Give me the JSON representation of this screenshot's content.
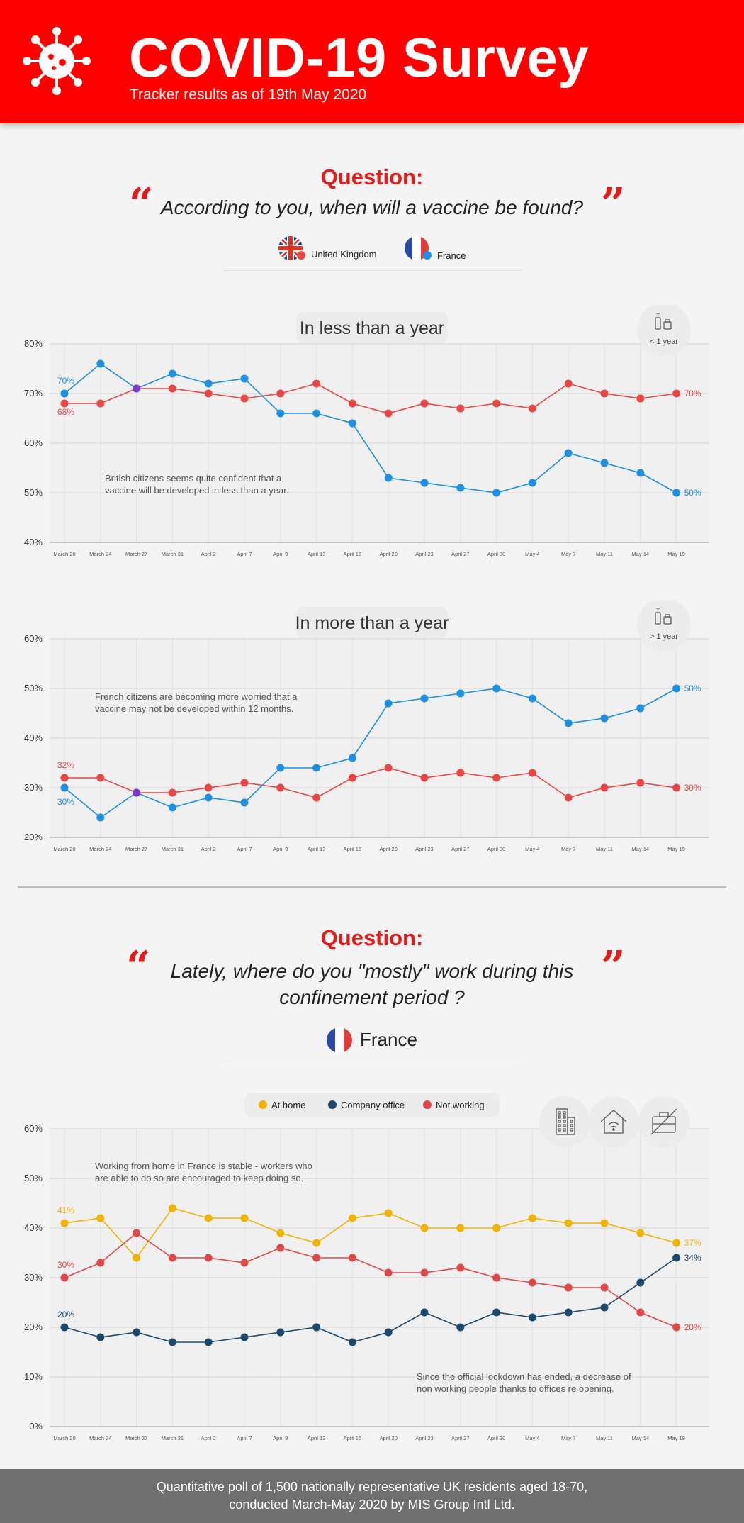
{
  "header": {
    "title": "COVID-19 Survey",
    "subtitle": "Tracker results as of 19th May 2020",
    "icon": "virus-icon",
    "bg_color": "#ff0000"
  },
  "section1": {
    "question_label": "Question:",
    "question_text": "According to you, when will a vaccine be found?",
    "legend": [
      {
        "label": "United Kingdom",
        "icon": "uk-flag-icon",
        "color": "#e84545"
      },
      {
        "label": "France",
        "icon": "france-flag-icon",
        "color": "#1e8fe1"
      }
    ]
  },
  "section2": {
    "question_label": "Question:",
    "question_text_line1": "Lately, where do you \"mostly\" work during this",
    "question_text_line2": "confinement period ?",
    "country": "France",
    "icons": [
      "office-building-icon",
      "home-wifi-icon",
      "no-work-briefcase-icon"
    ]
  },
  "footer": {
    "line1": "Quantitative poll of 1,500 nationally representative UK residents aged 18-70,",
    "line2": "conducted March-May 2020 by MIS Group Intl Ltd."
  },
  "chart_data": [
    {
      "type": "line",
      "title": "In less than a year",
      "badge": "< 1 year",
      "badge_icon": "vaccine-icon",
      "annotation": [
        "British citizens seems quite confident that a",
        "vaccine will be developed in less than a year."
      ],
      "categories": [
        "March 20",
        "March 24",
        "March 27",
        "March 31",
        "April 2",
        "April 7",
        "April 9",
        "April 13",
        "April 16",
        "April 20",
        "April 23",
        "April 27",
        "April 30",
        "May 4",
        "May 7",
        "May 11",
        "May 14",
        "May 19"
      ],
      "ylim": [
        40,
        80
      ],
      "yticks": [
        "40%",
        "50%",
        "60%",
        "70%",
        "80%"
      ],
      "grid": true,
      "series": [
        {
          "name": "United Kingdom",
          "color": "#e84545",
          "values": [
            68,
            68,
            71,
            71,
            70,
            69,
            70,
            72,
            68,
            66,
            68,
            67,
            68,
            67,
            72,
            70,
            69,
            70
          ],
          "first_label": "68%",
          "last_label": "70%"
        },
        {
          "name": "France",
          "color": "#1e8fe1",
          "values": [
            70,
            76,
            71,
            74,
            72,
            73,
            66,
            66,
            64,
            53,
            52,
            51,
            50,
            52,
            58,
            56,
            54,
            50
          ],
          "first_label": "70%",
          "last_label": "50%"
        }
      ]
    },
    {
      "type": "line",
      "title": "In more than a year",
      "badge": "> 1 year",
      "badge_icon": "vaccine-icon",
      "annotation": [
        "French citizens are becoming more worried that a",
        "vaccine may not be developed within 12 months."
      ],
      "categories": [
        "March 20",
        "March 24",
        "March 27",
        "March 31",
        "April 2",
        "April 7",
        "April 9",
        "April 13",
        "April 16",
        "April 20",
        "April 23",
        "April 27",
        "April 30",
        "May 4",
        "May 7",
        "May 11",
        "May 14",
        "May 19"
      ],
      "ylim": [
        20,
        60
      ],
      "yticks": [
        "20%",
        "30%",
        "40%",
        "50%",
        "60%"
      ],
      "grid": true,
      "series": [
        {
          "name": "United Kingdom",
          "color": "#e84545",
          "values": [
            32,
            32,
            29,
            29,
            30,
            31,
            30,
            28,
            32,
            34,
            32,
            33,
            32,
            33,
            28,
            30,
            31,
            30
          ],
          "first_label": "32%",
          "last_label": "30%"
        },
        {
          "name": "France",
          "color": "#1e8fe1",
          "values": [
            30,
            24,
            29,
            26,
            28,
            27,
            34,
            34,
            36,
            47,
            48,
            49,
            50,
            48,
            43,
            44,
            46,
            50
          ],
          "first_label": "30%",
          "last_label": "50%"
        }
      ]
    },
    {
      "type": "line",
      "title": "",
      "annotation": [
        "Working from home in France is stable - workers who",
        "are able to do so are encouraged to keep doing so."
      ],
      "annotation2": [
        "Since the official lockdown has ended, a decrease of",
        "non working people thanks to offices re opening."
      ],
      "categories": [
        "March 20",
        "March 24",
        "March 27",
        "March 31",
        "April 2",
        "April 7",
        "April 9",
        "April 13",
        "April 16",
        "April 20",
        "April 23",
        "April 27",
        "April 30",
        "May 4",
        "May 7",
        "May 11",
        "May 14",
        "May 19"
      ],
      "ylim": [
        0,
        60
      ],
      "yticks": [
        "0%",
        "10%",
        "20%",
        "30%",
        "40%",
        "50%",
        "60%"
      ],
      "grid": true,
      "legend_position": "top",
      "series": [
        {
          "name": "At home",
          "color": "#f0b400",
          "values": [
            41,
            42,
            34,
            44,
            42,
            42,
            39,
            37,
            42,
            43,
            40,
            40,
            40,
            42,
            41,
            41,
            39,
            37
          ],
          "first_label": "41%",
          "last_label": "37%"
        },
        {
          "name": "Company office",
          "color": "#1c4a6e",
          "values": [
            20,
            18,
            19,
            17,
            17,
            18,
            19,
            20,
            17,
            19,
            23,
            20,
            23,
            22,
            23,
            24,
            29,
            34
          ],
          "first_label": "20%",
          "last_label": "34%"
        },
        {
          "name": "Not working",
          "color": "#e04848",
          "values": [
            30,
            33,
            39,
            34,
            34,
            33,
            36,
            34,
            34,
            31,
            31,
            32,
            30,
            29,
            28,
            28,
            23,
            20
          ],
          "first_label": "30%",
          "last_label": "20%"
        }
      ]
    }
  ]
}
